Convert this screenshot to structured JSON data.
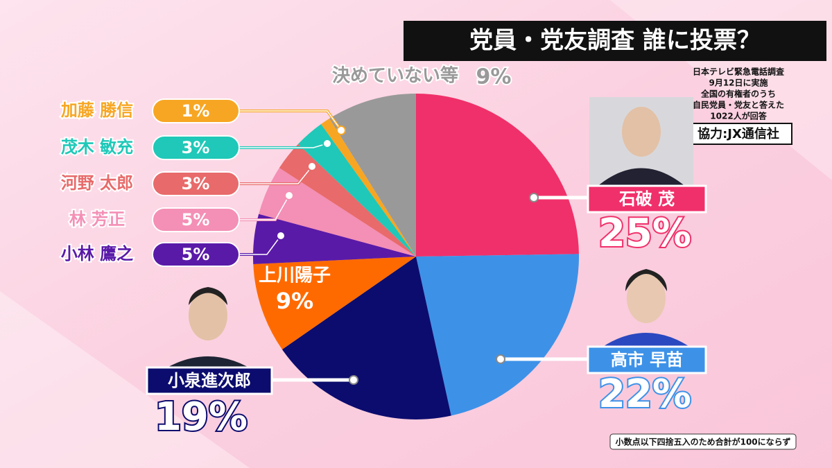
{
  "chart_data": {
    "type": "pie",
    "title": "党員・党友調査 誰に投票？",
    "notes": [
      "日本テレビ緊急電話調査",
      "9月12日に実施",
      "全国の有権者のうち",
      "自民党員・党友と答えた",
      "1022人が回答"
    ],
    "credit": "協力:JX通信社",
    "footnote": "小数点以下四捨五入のため合計が100にならず",
    "categories": [
      "石破 茂",
      "高市 早苗",
      "小泉進次郎",
      "上川陽子",
      "小林 鷹之",
      "林 芳正",
      "河野 太郎",
      "茂木 敏充",
      "加藤 勝信",
      "決めていない等"
    ],
    "values": [
      25,
      22,
      19,
      9,
      5,
      5,
      3,
      3,
      1,
      9
    ],
    "value_labels": [
      "25%",
      "22%",
      "19%",
      "9%",
      "5%",
      "5%",
      "3%",
      "3%",
      "1%",
      "9%"
    ],
    "colors": [
      "#f0306a",
      "#3d92e8",
      "#0c0c6e",
      "#ff6a00",
      "#5a1aa8",
      "#f48fb5",
      "#e86a6a",
      "#1fc8b8",
      "#f7a623",
      "#999999"
    ]
  }
}
